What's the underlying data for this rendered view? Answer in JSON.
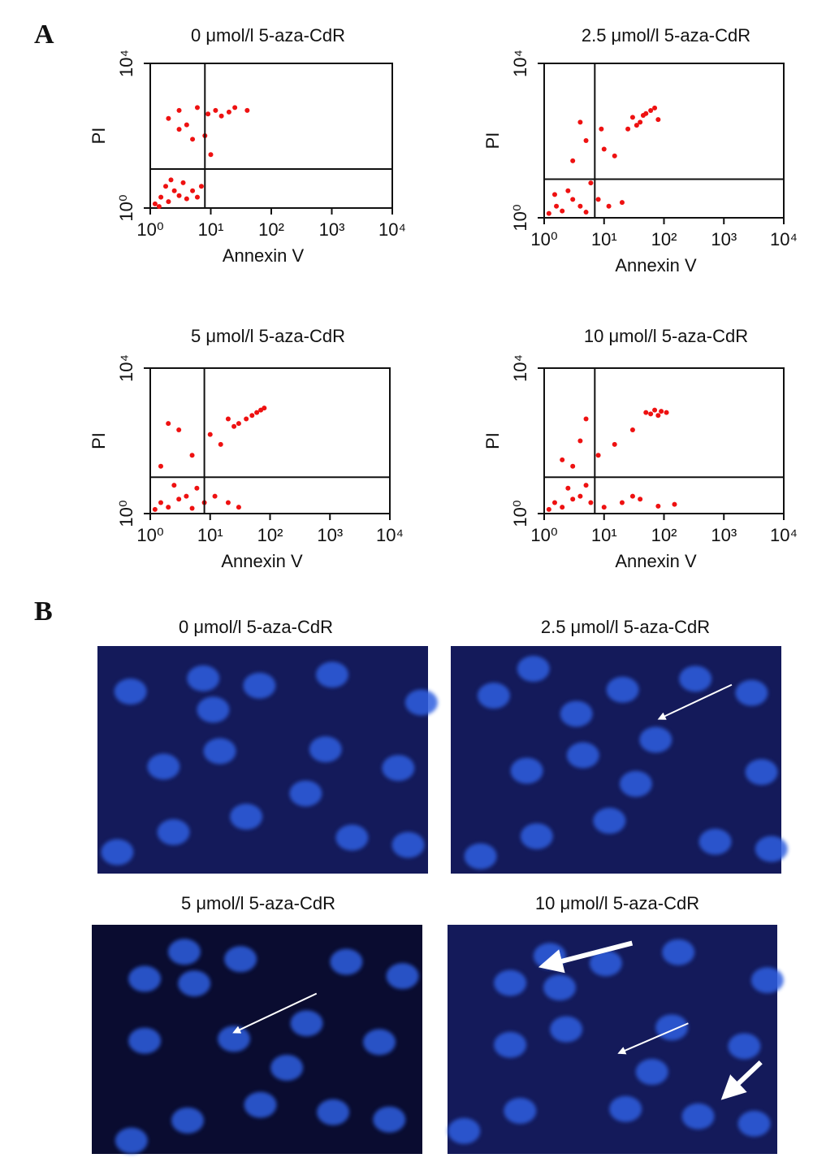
{
  "panel_a_label": "A",
  "panel_b_label": "B",
  "chart_data": [
    {
      "type": "scatter",
      "title": "0 μmol/l 5-aza-CdR",
      "xlabel": "Annexin V",
      "ylabel": "PI",
      "log_scale": true,
      "color": "#ee1111",
      "xlim": [
        1,
        10000
      ],
      "ylim": [
        1,
        10000
      ],
      "xticks": [
        {
          "value": 1,
          "label": "10⁰"
        },
        {
          "value": 10,
          "label": "10¹"
        },
        {
          "value": 100,
          "label": "10²"
        },
        {
          "value": 1000,
          "label": "10³"
        },
        {
          "value": 10000,
          "label": "10⁴"
        }
      ],
      "yticks": [
        {
          "value": 1,
          "label": "10⁰"
        },
        {
          "value": 10000,
          "label": "10⁴"
        }
      ],
      "quadrant_x": 8,
      "quadrant_y": 12,
      "x": [
        1.2,
        1.5,
        2,
        2.5,
        3,
        1.8,
        4,
        5,
        2.2,
        1.4,
        3.5,
        6,
        7,
        2,
        3,
        4,
        6,
        9,
        12,
        15,
        20,
        8,
        5,
        25,
        40,
        10,
        3
      ],
      "y": [
        1.3,
        2,
        1.5,
        3,
        2.2,
        4,
        1.8,
        3,
        6,
        1.1,
        5,
        2,
        4,
        300,
        500,
        200,
        600,
        400,
        500,
        350,
        450,
        100,
        80,
        600,
        500,
        30,
        150
      ]
    },
    {
      "type": "scatter",
      "title": "2.5 μmol/l 5-aza-CdR",
      "xlabel": "Annexin V",
      "ylabel": "PI",
      "log_scale": true,
      "color": "#ee1111",
      "xlim": [
        1,
        10000
      ],
      "ylim": [
        1,
        10000
      ],
      "xticks": [
        {
          "value": 1,
          "label": "10⁰"
        },
        {
          "value": 10,
          "label": "10¹"
        },
        {
          "value": 100,
          "label": "10²"
        },
        {
          "value": 1000,
          "label": "10³"
        },
        {
          "value": 10000,
          "label": "10⁴"
        }
      ],
      "yticks": [
        {
          "value": 1,
          "label": "10⁰"
        },
        {
          "value": 10000,
          "label": "10⁴"
        }
      ],
      "quadrant_x": 7,
      "quadrant_y": 10,
      "x": [
        1.2,
        1.6,
        2,
        3,
        4,
        2.5,
        5,
        8,
        12,
        20,
        1.5,
        6,
        30,
        40,
        50,
        60,
        80,
        35,
        45,
        25,
        70,
        5,
        10,
        15,
        4,
        3,
        9
      ],
      "y": [
        1.3,
        2,
        1.5,
        3,
        2,
        5,
        1.4,
        3,
        2,
        2.5,
        4,
        8,
        400,
        300,
        500,
        600,
        350,
        250,
        450,
        200,
        700,
        100,
        60,
        40,
        300,
        30,
        200
      ]
    },
    {
      "type": "scatter",
      "title": "5 μmol/l 5-aza-CdR",
      "xlabel": "Annexin V",
      "ylabel": "PI",
      "log_scale": true,
      "color": "#ee1111",
      "xlim": [
        1,
        10000
      ],
      "ylim": [
        1,
        10000
      ],
      "xticks": [
        {
          "value": 1,
          "label": "10⁰"
        },
        {
          "value": 10,
          "label": "10¹"
        },
        {
          "value": 100,
          "label": "10²"
        },
        {
          "value": 1000,
          "label": "10³"
        },
        {
          "value": 10000,
          "label": "10⁴"
        }
      ],
      "yticks": [
        {
          "value": 1,
          "label": "10⁰"
        },
        {
          "value": 10000,
          "label": "10⁴"
        }
      ],
      "quadrant_x": 8,
      "quadrant_y": 10,
      "x": [
        1.2,
        1.5,
        2,
        3,
        4,
        5,
        8,
        12,
        20,
        2.5,
        6,
        30,
        40,
        60,
        80,
        50,
        30,
        25,
        70,
        2,
        3,
        10,
        15,
        5,
        1.5,
        20
      ],
      "y": [
        1.3,
        2,
        1.5,
        2.5,
        3,
        1.4,
        2,
        3,
        2,
        6,
        5,
        1.5,
        400,
        600,
        800,
        500,
        300,
        250,
        700,
        300,
        200,
        150,
        80,
        40,
        20,
        400
      ]
    },
    {
      "type": "scatter",
      "title": "10 μmol/l 5-aza-CdR",
      "xlabel": "Annexin V",
      "ylabel": "PI",
      "log_scale": true,
      "color": "#ee1111",
      "xlim": [
        1,
        10000
      ],
      "ylim": [
        1,
        10000
      ],
      "xticks": [
        {
          "value": 1,
          "label": "10⁰"
        },
        {
          "value": 10,
          "label": "10¹"
        },
        {
          "value": 100,
          "label": "10²"
        },
        {
          "value": 1000,
          "label": "10³"
        },
        {
          "value": 10000,
          "label": "10⁴"
        }
      ],
      "yticks": [
        {
          "value": 1,
          "label": "10⁰"
        },
        {
          "value": 10000,
          "label": "10⁴"
        }
      ],
      "quadrant_x": 7,
      "quadrant_y": 10,
      "x": [
        1.2,
        1.5,
        2,
        3,
        4,
        6,
        10,
        20,
        40,
        80,
        150,
        2.5,
        5,
        30,
        50,
        70,
        90,
        110,
        80,
        60,
        3,
        4,
        5,
        8,
        15,
        30,
        2
      ],
      "y": [
        1.3,
        2,
        1.5,
        2.5,
        3,
        2,
        1.5,
        2,
        2.5,
        1.6,
        1.8,
        5,
        6,
        3,
        600,
        700,
        650,
        600,
        500,
        550,
        20,
        100,
        400,
        40,
        80,
        200,
        30
      ]
    }
  ],
  "images": [
    {
      "title": "0 μmol/l 5-aza-CdR"
    },
    {
      "title": "2.5 μmol/l 5-aza-CdR"
    },
    {
      "title": "5 μmol/l 5-aza-CdR"
    },
    {
      "title": "10 μmol/l 5-aza-CdR"
    }
  ]
}
